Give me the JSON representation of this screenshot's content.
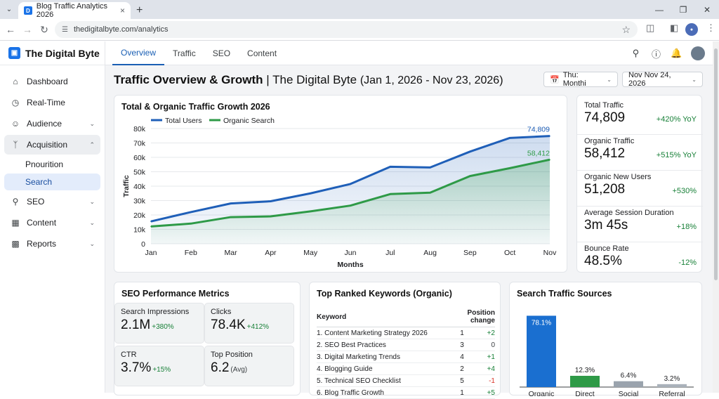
{
  "browser": {
    "tab_title": "Blog Traffic Analytics 2026",
    "url": "thedigitalbyte.com/analytics"
  },
  "brand": {
    "name": "The Digital Byte"
  },
  "sidebar": {
    "items": [
      {
        "label": "Dashboard",
        "icon": "home-icon"
      },
      {
        "label": "Real-Time",
        "icon": "clock-icon"
      },
      {
        "label": "Audience",
        "icon": "person-icon"
      },
      {
        "label": "Acquisition",
        "icon": "branch-icon"
      },
      {
        "label": "SEO",
        "icon": "search-icon"
      },
      {
        "label": "Content",
        "icon": "content-icon"
      },
      {
        "label": "Reports",
        "icon": "chart-icon"
      }
    ],
    "subitems": [
      "Pnourition",
      "Search"
    ]
  },
  "topnav": {
    "tabs": [
      "Overview",
      "Traffic",
      "SEO",
      "Content"
    ],
    "active": "Overview"
  },
  "header": {
    "title_bold": "Traffic Overview & Growth",
    "title_rest": " | The Digital Byte ",
    "date_range": "(Jan 1, 2026 - Nov 23, 2026)",
    "range_select": "Thu: Monthi",
    "date_select": "Nov Nov 24, 2026"
  },
  "chart_card": {
    "title": "Total & Organic Traffic Growth 2026"
  },
  "chart_data": {
    "type": "area",
    "title": "Total & Organic Traffic Growth 2026",
    "xlabel": "Months",
    "ylabel": "Traffic",
    "categories": [
      "Jan",
      "Feb",
      "Mar",
      "Apr",
      "May",
      "Jun",
      "Jul",
      "Aug",
      "Sep",
      "Oct",
      "Nov"
    ],
    "ylim": [
      0,
      80000
    ],
    "yticks": [
      "80k",
      "70k",
      "60k",
      "50k",
      "40k",
      "30k",
      "20k",
      "10k",
      "0"
    ],
    "legend_position": "top-left",
    "series": [
      {
        "name": "Total Users",
        "color": "#1f5fb8",
        "values": [
          15500,
          22000,
          28000,
          29500,
          35000,
          41500,
          53500,
          53000,
          64000,
          73500,
          74809
        ],
        "end_label": "74,809"
      },
      {
        "name": "Organic Search",
        "color": "#2e9a47",
        "values": [
          12000,
          14000,
          18500,
          19000,
          22500,
          26500,
          34500,
          35500,
          47000,
          52500,
          58412
        ],
        "end_label": "58,412"
      }
    ]
  },
  "kpis": [
    {
      "label": "Total Traffic",
      "value": "74,809",
      "change": "+420% YoY"
    },
    {
      "label": "Organic Traffic",
      "value": "58,412",
      "change": "+515% YoY"
    },
    {
      "label": "Organic New Users",
      "value": "51,208",
      "change": "+530%"
    },
    {
      "label": "Average Session Duration",
      "value": "3m 45s",
      "change": "+18%"
    },
    {
      "label": "Bounce Rate",
      "value": "48.5%",
      "change": "-12%"
    }
  ],
  "seo": {
    "title": "SEO Performance Metrics",
    "metrics": [
      {
        "label": "Search Impressions",
        "value": "2.1M",
        "change": "+380%"
      },
      {
        "label": "Clicks",
        "value": "78.4K",
        "change": "+412%"
      },
      {
        "label": "CTR",
        "value": "3.7%",
        "change": "+15%"
      },
      {
        "label": "Top Position",
        "value": "6.2",
        "change": "(Avg)"
      }
    ]
  },
  "keywords": {
    "title": "Top Ranked Keywords (Organic)",
    "headers": [
      "Keyword",
      "Position change"
    ],
    "rows": [
      {
        "keyword": "1. Content Marketing Strategy 2026",
        "position": "1",
        "change": "+2"
      },
      {
        "keyword": "2. SEO Best Practices",
        "position": "3",
        "change": "0"
      },
      {
        "keyword": "3. Digital Marketing Trends",
        "position": "4",
        "change": "+1"
      },
      {
        "keyword": "4. Blogging Guide",
        "position": "2",
        "change": "+4"
      },
      {
        "keyword": "5. Technical SEO Checklist",
        "position": "5",
        "change": "-1"
      },
      {
        "keyword": "6. Blog Traffic Growth",
        "position": "1",
        "change": "+5"
      }
    ]
  },
  "sources": {
    "title": "Search Traffic Sources",
    "chart_data": {
      "type": "bar",
      "categories": [
        "Organic",
        "Direct",
        "Social",
        "Referral"
      ],
      "values": [
        78.1,
        12.3,
        6.4,
        3.2
      ],
      "labels": [
        "78.1%",
        "12.3%",
        "6.4%",
        "3.2%"
      ],
      "colors": [
        "#1a6fd0",
        "#2e9a47",
        "#9aa3ad",
        "#aab2bb"
      ]
    }
  }
}
